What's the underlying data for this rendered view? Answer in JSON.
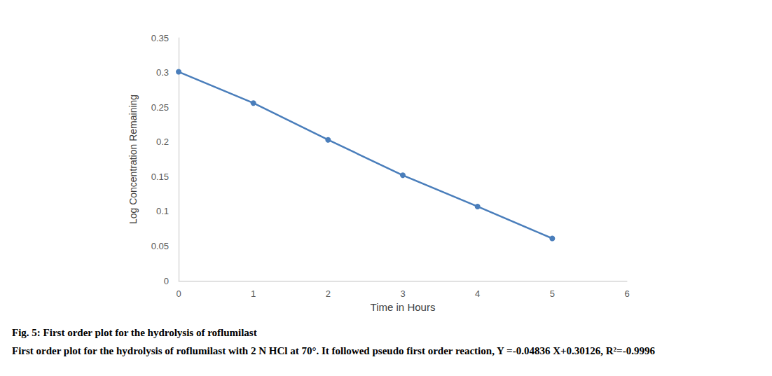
{
  "chart_data": {
    "type": "line",
    "title": "Fig. 5: First order plot for the hydrolysis of roflumilast",
    "subtitle": "First order plot for the hydrolysis of roflumilast with 2 N HCl at 70°. It followed pseudo first order reaction, Y =-0.04836 X+0.30126, R²=-0.9996",
    "x_label": "Time in Hours",
    "y_label": "Log Concentration Remaining",
    "x": [
      0,
      1,
      2,
      3,
      4,
      5
    ],
    "values": [
      0.301,
      0.256,
      0.203,
      0.152,
      0.107,
      0.061
    ],
    "color": "#4a7ebb",
    "marker": "circle",
    "xlim": [
      0,
      6
    ],
    "xticks": [
      0,
      1,
      2,
      3,
      4,
      5,
      6
    ],
    "ylim": [
      0,
      0.35
    ],
    "yticks": [
      0,
      0.05,
      0.1,
      0.15,
      0.2,
      0.25,
      0.3,
      0.35
    ],
    "grid": false
  }
}
